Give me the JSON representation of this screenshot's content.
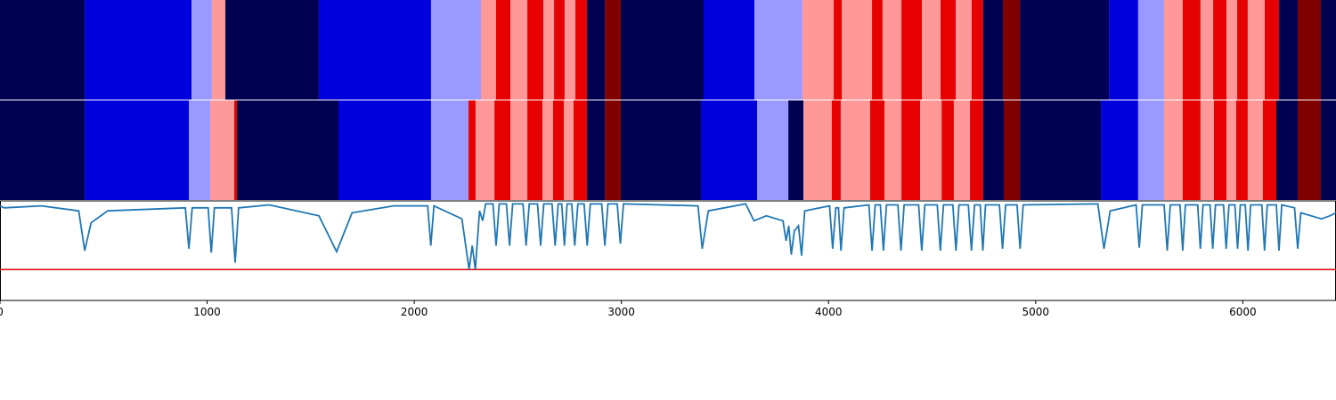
{
  "chart_data": [
    {
      "type": "segments",
      "xlim": [
        0,
        6450
      ],
      "boundaries": [
        0,
        409,
        925,
        1023,
        1088,
        1539,
        2081,
        2322,
        2395,
        2464,
        2546,
        2623,
        2675,
        2726,
        2778,
        2834,
        2920,
        2997,
        3397,
        3642,
        3874,
        4025,
        4064,
        4210,
        4261,
        4352,
        4451,
        4541,
        4614,
        4691,
        4747,
        4842,
        4924,
        5354,
        5495,
        5620,
        5710,
        5796,
        5857,
        5921,
        5973,
        6024,
        6106,
        6175,
        6265,
        6377,
        6450
      ],
      "colors": [
        "#000050",
        "#0000dd",
        "#9999ff",
        "#ff9999",
        "#000050",
        "#0000dd",
        "#9999ff",
        "#ff9999",
        "#e60000",
        "#ff9999",
        "#e60000",
        "#ff9999",
        "#e60000",
        "#ff9999",
        "#e60000",
        "#000050",
        "#800000",
        "#000050",
        "#0000dd",
        "#9999ff",
        "#ff9999",
        "#e60000",
        "#ff9999",
        "#e60000",
        "#ff9999",
        "#e60000",
        "#ff9999",
        "#e60000",
        "#ff9999",
        "#e60000",
        "#000050",
        "#800000",
        "#000050",
        "#0000dd",
        "#9999ff",
        "#ff9999",
        "#e60000",
        "#ff9999",
        "#e60000",
        "#ff9999",
        "#e60000",
        "#ff9999",
        "#e60000",
        "#000050",
        "#800000",
        "#000050"
      ]
    },
    {
      "type": "segments",
      "xlim": [
        0,
        6450
      ],
      "boundaries": [
        0,
        409,
        912,
        1015,
        1131,
        1144,
        1634,
        2081,
        2262,
        2296,
        2387,
        2464,
        2546,
        2619,
        2670,
        2722,
        2769,
        2834,
        2920,
        2997,
        3384,
        3655,
        3806,
        3879,
        4016,
        4059,
        4201,
        4270,
        4352,
        4443,
        4546,
        4605,
        4683,
        4747,
        4846,
        4924,
        5315,
        5495,
        5620,
        5710,
        5796,
        5861,
        5921,
        5968,
        6024,
        6097,
        6162,
        6265,
        6377,
        6450
      ],
      "colors": [
        "#000050",
        "#0000dd",
        "#9999ff",
        "#ff9999",
        "#e60000",
        "#000050",
        "#0000dd",
        "#9999ff",
        "#e60000",
        "#ff9999",
        "#e60000",
        "#ff9999",
        "#e60000",
        "#ff9999",
        "#e60000",
        "#ff9999",
        "#e60000",
        "#000050",
        "#800000",
        "#000050",
        "#0000dd",
        "#9999ff",
        "#000050",
        "#ff9999",
        "#e60000",
        "#ff9999",
        "#e60000",
        "#ff9999",
        "#e60000",
        "#ff9999",
        "#e60000",
        "#ff9999",
        "#e60000",
        "#000050",
        "#800000",
        "#000050",
        "#0000dd",
        "#9999ff",
        "#ff9999",
        "#e60000",
        "#ff9999",
        "#e60000",
        "#ff9999",
        "#e60000",
        "#ff9999",
        "#e60000",
        "#000050",
        "#800000",
        "#000050"
      ]
    },
    {
      "type": "line",
      "xlim": [
        0,
        6450
      ],
      "ylim": [
        0,
        1
      ],
      "xticks": [
        0,
        1000,
        2000,
        3000,
        4000,
        5000,
        6000
      ],
      "color": "#1f77b4",
      "threshold": 0.31,
      "threshold_color": "#e00000",
      "x": [
        0,
        20,
        200,
        380,
        409,
        440,
        520,
        895,
        912,
        928,
        1005,
        1020,
        1035,
        1118,
        1135,
        1152,
        1300,
        1540,
        1625,
        1700,
        1900,
        2065,
        2080,
        2095,
        2230,
        2265,
        2280,
        2295,
        2315,
        2330,
        2345,
        2380,
        2395,
        2410,
        2445,
        2460,
        2475,
        2525,
        2540,
        2555,
        2595,
        2610,
        2625,
        2665,
        2680,
        2695,
        2712,
        2725,
        2738,
        2760,
        2775,
        2790,
        2820,
        2835,
        2850,
        2905,
        2920,
        2935,
        2980,
        2995,
        3010,
        3370,
        3390,
        3420,
        3600,
        3640,
        3700,
        3780,
        3795,
        3808,
        3820,
        3835,
        3855,
        3870,
        3885,
        4005,
        4020,
        4035,
        4048,
        4060,
        4075,
        4195,
        4210,
        4225,
        4250,
        4265,
        4280,
        4335,
        4350,
        4365,
        4435,
        4450,
        4465,
        4525,
        4540,
        4555,
        4600,
        4615,
        4630,
        4675,
        4690,
        4705,
        4732,
        4745,
        4758,
        4825,
        4840,
        4855,
        4910,
        4925,
        4940,
        5300,
        5330,
        5360,
        5485,
        5500,
        5515,
        5620,
        5635,
        5650,
        5697,
        5710,
        5723,
        5782,
        5795,
        5808,
        5842,
        5855,
        5868,
        5907,
        5920,
        5933,
        5962,
        5975,
        5988,
        6012,
        6025,
        6038,
        6092,
        6105,
        6118,
        6162,
        6175,
        6188,
        6250,
        6265,
        6280,
        6380,
        6420,
        6450
      ],
      "values": [
        0.95,
        0.93,
        0.95,
        0.9,
        0.5,
        0.78,
        0.9,
        0.93,
        0.52,
        0.93,
        0.93,
        0.48,
        0.93,
        0.93,
        0.38,
        0.93,
        0.96,
        0.85,
        0.49,
        0.88,
        0.95,
        0.95,
        0.55,
        0.95,
        0.82,
        0.31,
        0.55,
        0.31,
        0.9,
        0.8,
        0.97,
        0.97,
        0.55,
        0.97,
        0.97,
        0.55,
        0.97,
        0.97,
        0.55,
        0.97,
        0.97,
        0.55,
        0.97,
        0.97,
        0.55,
        0.97,
        0.97,
        0.55,
        0.97,
        0.97,
        0.55,
        0.97,
        0.97,
        0.55,
        0.97,
        0.97,
        0.55,
        0.97,
        0.97,
        0.57,
        0.97,
        0.95,
        0.52,
        0.9,
        0.97,
        0.8,
        0.85,
        0.8,
        0.6,
        0.75,
        0.46,
        0.7,
        0.75,
        0.45,
        0.9,
        0.95,
        0.52,
        0.93,
        0.93,
        0.5,
        0.93,
        0.96,
        0.5,
        0.96,
        0.96,
        0.5,
        0.96,
        0.96,
        0.5,
        0.96,
        0.96,
        0.5,
        0.96,
        0.96,
        0.5,
        0.96,
        0.96,
        0.5,
        0.96,
        0.96,
        0.5,
        0.96,
        0.96,
        0.5,
        0.96,
        0.96,
        0.52,
        0.96,
        0.96,
        0.52,
        0.96,
        0.97,
        0.52,
        0.9,
        0.96,
        0.53,
        0.96,
        0.96,
        0.5,
        0.96,
        0.96,
        0.5,
        0.96,
        0.96,
        0.52,
        0.96,
        0.96,
        0.52,
        0.96,
        0.96,
        0.52,
        0.96,
        0.96,
        0.52,
        0.96,
        0.96,
        0.5,
        0.96,
        0.96,
        0.5,
        0.96,
        0.96,
        0.5,
        0.96,
        0.93,
        0.52,
        0.88,
        0.82,
        0.85,
        0.88
      ]
    }
  ]
}
